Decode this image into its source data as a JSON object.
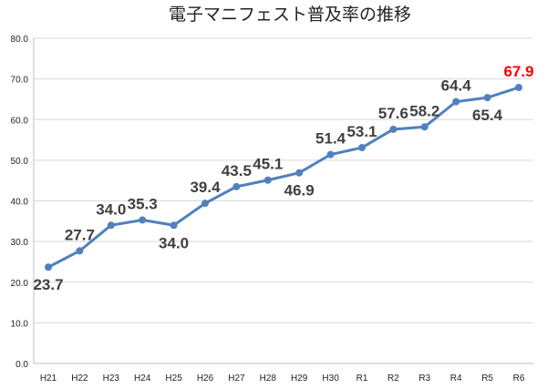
{
  "chart_data": {
    "type": "line",
    "title": "電子マニフェスト普及率の推移",
    "xlabel": "",
    "ylabel": "",
    "categories": [
      "H21",
      "H22",
      "H23",
      "H24",
      "H25",
      "H26",
      "H27",
      "H28",
      "H29",
      "H30",
      "R1",
      "R2",
      "R3",
      "R4",
      "R5",
      "R6"
    ],
    "values": [
      23.7,
      27.7,
      34.0,
      35.3,
      34.0,
      39.4,
      43.5,
      45.1,
      46.9,
      51.4,
      53.1,
      57.6,
      58.2,
      64.4,
      65.4,
      67.9
    ],
    "data_labels": [
      "23.7",
      "27.7",
      "34.0",
      "35.3",
      "34.0",
      "39.4",
      "43.5",
      "45.1",
      "46.9",
      "51.4",
      "53.1",
      "57.6",
      "58.2",
      "64.4",
      "65.4",
      "67.9"
    ],
    "label_positions": [
      "below",
      "above",
      "above",
      "above",
      "below",
      "above",
      "above",
      "above",
      "below",
      "above",
      "above",
      "above",
      "above",
      "above",
      "below",
      "above"
    ],
    "ylim": [
      0,
      80
    ],
    "yticks": [
      "0.0",
      "10.0",
      "20.0",
      "30.0",
      "40.0",
      "50.0",
      "60.0",
      "70.0",
      "80.0"
    ],
    "grid": true,
    "legend": "none",
    "colors": {
      "line": "#4f81bd",
      "label": "#404040",
      "highlight_label": "#ff0000",
      "grid": "#d9d9d9"
    },
    "highlight_index": 15
  }
}
